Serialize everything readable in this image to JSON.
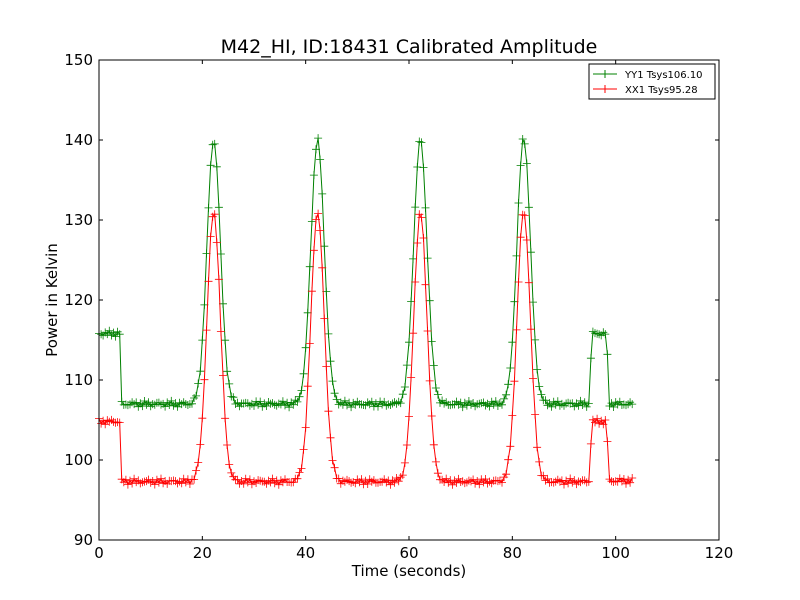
{
  "chart_data": {
    "type": "line",
    "title": "M42_HI, ID:18431 Calibrated Amplitude",
    "xlabel": "Time (seconds)",
    "ylabel": "Power in Kelvin",
    "xlim": [
      0,
      120
    ],
    "ylim": [
      90,
      150
    ],
    "xticks": [
      "0",
      "20",
      "40",
      "60",
      "80",
      "100",
      "120"
    ],
    "yticks": [
      "90",
      "100",
      "110",
      "120",
      "130",
      "140",
      "150"
    ],
    "grid": false,
    "legend_position": "top-right",
    "marker": "+",
    "series": [
      {
        "name": "YY1 Tsys106.10",
        "color": "#008000",
        "baseline": [
          [
            0,
            115.8
          ],
          [
            4,
            115.8
          ],
          [
            4.4,
            107.0
          ],
          [
            95,
            107.0
          ],
          [
            95.3,
            115.8
          ],
          [
            98.3,
            115.8
          ],
          [
            98.6,
            107.0
          ],
          [
            103.5,
            107.0
          ]
        ],
        "peaks": [
          {
            "x": 22.2,
            "y": 140.0
          },
          {
            "x": 42.3,
            "y": 140.0
          },
          {
            "x": 62.2,
            "y": 140.0
          },
          {
            "x": 82.2,
            "y": 140.3
          }
        ],
        "peak_width": 1.3
      },
      {
        "name": "XX1 Tsys95.28",
        "color": "#ff0000",
        "baseline": [
          [
            0,
            104.8
          ],
          [
            4,
            104.8
          ],
          [
            4.4,
            97.3
          ],
          [
            95,
            97.3
          ],
          [
            95.3,
            104.8
          ],
          [
            98.3,
            104.8
          ],
          [
            98.6,
            97.4
          ],
          [
            103.5,
            97.4
          ]
        ],
        "peaks": [
          {
            "x": 22.2,
            "y": 131.0
          },
          {
            "x": 42.3,
            "y": 131.0
          },
          {
            "x": 62.2,
            "y": 130.8
          },
          {
            "x": 82.2,
            "y": 131.0
          }
        ],
        "peak_width": 1.3
      }
    ]
  }
}
